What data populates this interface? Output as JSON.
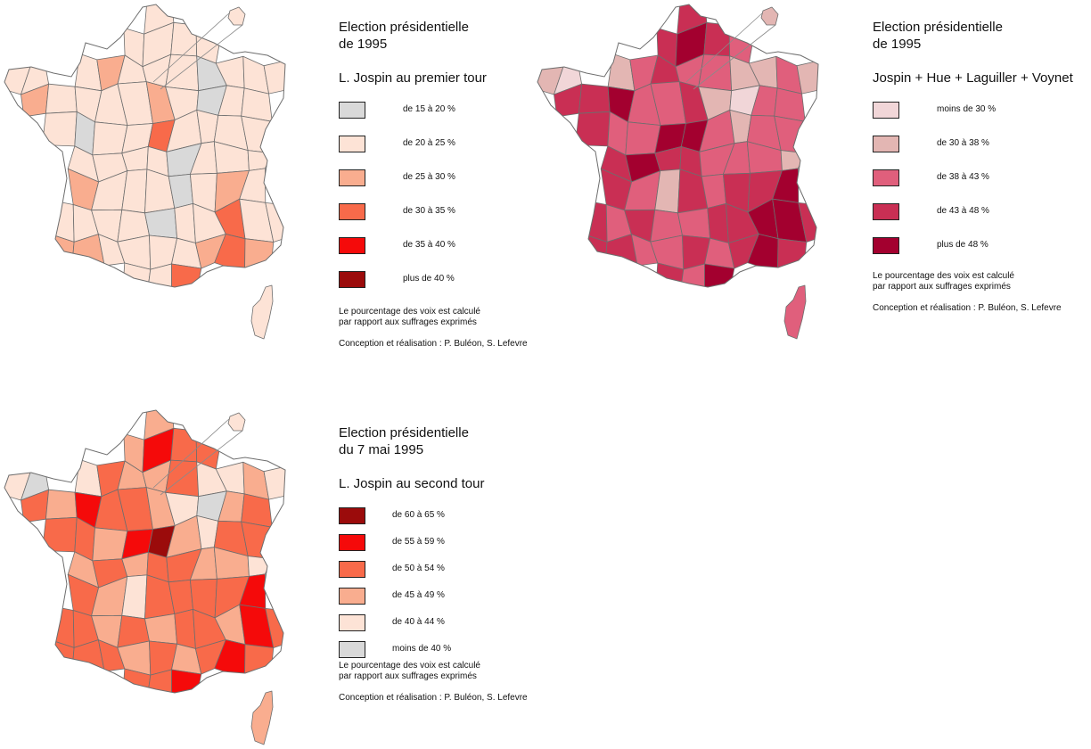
{
  "maps": [
    {
      "id": "first-round",
      "title": [
        "Election présidentielle",
        "de 1995"
      ],
      "subtitle": "L. Jospin au premier tour",
      "legend": [
        {
          "label": "de 15 à 20 %",
          "color": "#d9d9d9"
        },
        {
          "label": "de 20 à 25 %",
          "color": "#fde3d6"
        },
        {
          "label": "de 25 à 30 %",
          "color": "#f9ad8f"
        },
        {
          "label": "de 30 à 35 %",
          "color": "#f86a4a"
        },
        {
          "label": "de 35 à 40 %",
          "color": "#f50a0a"
        },
        {
          "label": "plus de 40 %",
          "color": "#9b0b0b"
        }
      ],
      "note": [
        "Le pourcentage des voix est calculé",
        "par rapport aux suffrages exprimés"
      ],
      "credit": "Conception et réalisation : P. Buléon, S. Lefevre"
    },
    {
      "id": "left-total",
      "title": [
        "Election présidentielle",
        "de 1995"
      ],
      "subtitle": "Jospin + Hue + Laguiller + Voynet",
      "legend": [
        {
          "label": "moins de 30 %",
          "color": "#f1d6d8"
        },
        {
          "label": "de 30 à 38 %",
          "color": "#e3b6b3"
        },
        {
          "label": "de 38 à 43 %",
          "color": "#e05f7c"
        },
        {
          "label": "de 43 à 48 %",
          "color": "#c92f54"
        },
        {
          "label": "plus de 48 %",
          "color": "#a3002f"
        }
      ],
      "note": [
        "Le pourcentage des voix est calculé",
        "par rapport aux suffrages exprimés"
      ],
      "credit": "Conception et réalisation : P. Buléon, S. Lefevre"
    },
    {
      "id": "second-round",
      "title": [
        "Election présidentielle",
        "du 7 mai 1995"
      ],
      "subtitle": "L. Jospin au second tour",
      "legend": [
        {
          "label": "de 60 à 65 %",
          "color": "#9b0b0b"
        },
        {
          "label": "de 55 à 59 %",
          "color": "#f50a0a"
        },
        {
          "label": "de 50 à 54 %",
          "color": "#f86a4a"
        },
        {
          "label": "de 45 à 49 %",
          "color": "#f9ad8f"
        },
        {
          "label": "de 40 à 44 %",
          "color": "#fde3d6"
        },
        {
          "label": "moins de 40 %",
          "color": "#d9d9d9"
        }
      ],
      "note": [
        "Le pourcentage des voix est calculé",
        "par rapport aux suffrages exprimés"
      ],
      "credit": "Conception et réalisation : P. Buléon, S. Lefevre"
    }
  ],
  "palettes": {
    "first-round": [
      1,
      1,
      1,
      1,
      1,
      1,
      1,
      1,
      2,
      1,
      1,
      1,
      0,
      1,
      1,
      1,
      2,
      1,
      1,
      1,
      1,
      2,
      1,
      0,
      1,
      1,
      1,
      0,
      1,
      1,
      3,
      1,
      1,
      1,
      1,
      1,
      1,
      1,
      1,
      0,
      1,
      1,
      1,
      2,
      1,
      1,
      1,
      0,
      1,
      2,
      1,
      1,
      1,
      1,
      1,
      0,
      1,
      1,
      3,
      1,
      1,
      2,
      2,
      1,
      1,
      1,
      1,
      2,
      3,
      2,
      1,
      1,
      3,
      2,
      1,
      1,
      1,
      0,
      1,
      2,
      3,
      3,
      1,
      1,
      1,
      1,
      0,
      1,
      1,
      2
    ],
    "left-total": [
      3,
      3,
      4,
      3,
      2,
      1,
      0,
      1,
      2,
      3,
      2,
      2,
      1,
      1,
      2,
      1,
      3,
      3,
      4,
      2,
      2,
      3,
      1,
      0,
      2,
      2,
      3,
      2,
      2,
      4,
      4,
      2,
      1,
      2,
      2,
      3,
      4,
      3,
      3,
      2,
      2,
      2,
      1,
      3,
      2,
      1,
      3,
      2,
      3,
      3,
      4,
      3,
      2,
      3,
      2,
      2,
      3,
      3,
      4,
      4,
      3,
      3,
      3,
      2,
      2,
      3,
      2,
      3,
      4,
      3,
      3,
      2,
      4,
      3,
      2,
      2,
      3,
      3,
      2,
      3,
      4,
      4,
      3,
      2,
      2,
      3,
      1,
      2,
      2,
      3
    ],
    "second-round": [
      2,
      2,
      4,
      3,
      3,
      1,
      0,
      1,
      3,
      2,
      2,
      3,
      1,
      1,
      2,
      1,
      3,
      2,
      4,
      3,
      3,
      2,
      1,
      0,
      2,
      3,
      3,
      3,
      2,
      4,
      5,
      2,
      1,
      3,
      3,
      2,
      3,
      2,
      3,
      3,
      2,
      2,
      1,
      3,
      2,
      1,
      3,
      3,
      3,
      3,
      4,
      3,
      3,
      2,
      3,
      2,
      3,
      3,
      2,
      4,
      3,
      3,
      3,
      3,
      2,
      3,
      2,
      3,
      4,
      3,
      3,
      3,
      4,
      3,
      2,
      2,
      3,
      1,
      2,
      3,
      4,
      4,
      3,
      3,
      2,
      3,
      1,
      2,
      2,
      3
    ]
  }
}
